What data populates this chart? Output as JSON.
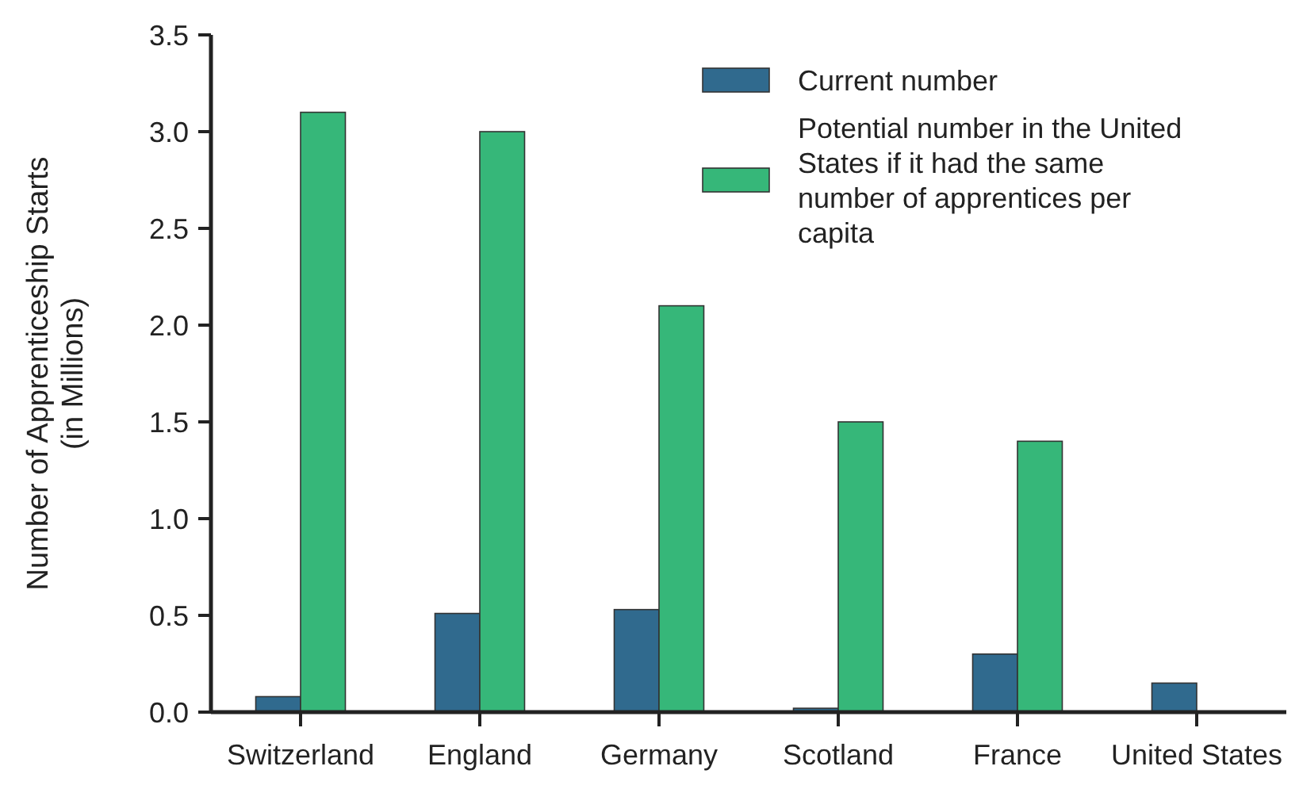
{
  "chart_data": {
    "type": "bar",
    "ylabel": "Number of Apprenticeship Starts (in Millions)",
    "categories": [
      "Switzerland",
      "England",
      "Germany",
      "Scotland",
      "France",
      "United States"
    ],
    "series": [
      {
        "name": "Current number",
        "color": "#306a8e",
        "values": [
          0.08,
          0.51,
          0.53,
          0.02,
          0.3,
          0.15
        ]
      },
      {
        "name": "Potential number in the United States if it had the same number of apprentices per capita",
        "color": "#36b779",
        "values": [
          3.1,
          3.0,
          2.1,
          1.5,
          1.4,
          null
        ]
      }
    ],
    "ylim": [
      0,
      3.5
    ],
    "yticks": [
      {
        "value": 0,
        "label": "0.0"
      },
      {
        "value": 0.5,
        "label": "0.5"
      },
      {
        "value": 1,
        "label": "1.0"
      },
      {
        "value": 1.5,
        "label": "1.5"
      },
      {
        "value": 2,
        "label": "2.0"
      },
      {
        "value": 2.5,
        "label": "2.5"
      },
      {
        "value": 3,
        "label": "3.0"
      },
      {
        "value": 3.5,
        "label": "3.5"
      }
    ],
    "legend": "top right",
    "grid": false
  }
}
